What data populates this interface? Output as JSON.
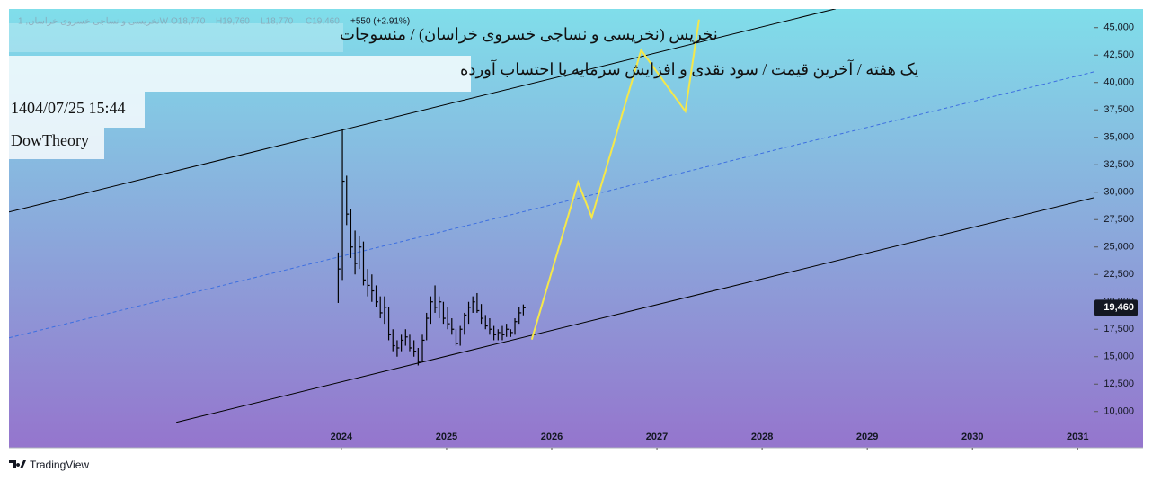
{
  "header": {
    "title": "نخریس (نخریسی و نساجی خسروی خراسان) / منسوجات",
    "subtitle": "یک هفته / آخرین قیمت / سود نقدی و افزایش سرمایه با احتساب آورده",
    "datetime": "1404/07/25 15:44",
    "author": "DowTheory"
  },
  "legend": {
    "symbol": "نخریسی و نساجی خسروی خراسان, 1W",
    "open": {
      "value": 18770,
      "label": "O18,770"
    },
    "high": {
      "value": 19760,
      "label": "H19,760"
    },
    "low": {
      "value": 18770,
      "label": "L18,770"
    },
    "close": {
      "value": 19460,
      "label": "C19,460"
    },
    "change": {
      "value": 550,
      "label": "+550 (+2.91%)"
    }
  },
  "brand": "TradingView",
  "chart_data": {
    "type": "ohlc",
    "color": "#000000",
    "x": [
      2023.97,
      2024.01,
      2024.05,
      2024.09,
      2024.13,
      2024.17,
      2024.21,
      2024.25,
      2024.29,
      2024.33,
      2024.37,
      2024.41,
      2024.45,
      2024.49,
      2024.53,
      2024.57,
      2024.61,
      2024.65,
      2024.69,
      2024.73,
      2024.77,
      2024.81,
      2024.85,
      2024.89,
      2024.93,
      2024.97,
      2025.01,
      2025.05,
      2025.09,
      2025.13,
      2025.17,
      2025.21,
      2025.25,
      2025.29,
      2025.33,
      2025.37,
      2025.41,
      2025.45,
      2025.49,
      2025.53,
      2025.57,
      2025.61,
      2025.65,
      2025.69,
      2025.73
    ],
    "high": [
      24500,
      35800,
      31500,
      28500,
      26500,
      26000,
      25500,
      23000,
      22500,
      21500,
      20500,
      20500,
      19500,
      17500,
      16500,
      17000,
      17500,
      17000,
      16500,
      15800,
      17000,
      19000,
      20500,
      21500,
      20500,
      20000,
      19500,
      18500,
      17500,
      17800,
      19000,
      20000,
      20500,
      20800,
      19800,
      18800,
      18500,
      17800,
      17500,
      17800,
      18000,
      17500,
      18500,
      19500,
      19760
    ],
    "low": [
      19900,
      22000,
      27000,
      24000,
      22500,
      23000,
      21500,
      20500,
      20000,
      19500,
      18500,
      18000,
      16500,
      15500,
      15000,
      15500,
      16000,
      15500,
      15000,
      14200,
      14500,
      16500,
      18000,
      19000,
      18500,
      18000,
      17500,
      17000,
      16000,
      16000,
      17000,
      18000,
      19000,
      19000,
      18000,
      17500,
      17000,
      16500,
      16500,
      16500,
      16800,
      16800,
      17000,
      18000,
      18770
    ],
    "close": [
      23000,
      31000,
      28000,
      25000,
      23500,
      25000,
      22000,
      21500,
      21000,
      20000,
      19000,
      19500,
      17000,
      16000,
      15800,
      16500,
      16800,
      15800,
      15500,
      14500,
      16500,
      18500,
      20000,
      19500,
      20000,
      18500,
      18000,
      17500,
      16200,
      17500,
      18800,
      19500,
      20000,
      19200,
      18500,
      17800,
      17500,
      17000,
      17200,
      17000,
      17500,
      17200,
      18200,
      19000,
      19460
    ],
    "xlim": [
      2020.84,
      2031.16
    ],
    "ylim": [
      6700,
      46700
    ],
    "xticks": [
      2024,
      2025,
      2026,
      2027,
      2028,
      2029,
      2030,
      2031
    ],
    "yticks": [
      {
        "value": 10000,
        "label": "10,000"
      },
      {
        "value": 12500,
        "label": "12,500"
      },
      {
        "value": 15000,
        "label": "15,000"
      },
      {
        "value": 17500,
        "label": "17,500"
      },
      {
        "value": 20000,
        "label": "20,000"
      },
      {
        "value": 22500,
        "label": "22,500"
      },
      {
        "value": 25000,
        "label": "25,000"
      },
      {
        "value": 27500,
        "label": "27,500"
      },
      {
        "value": 30000,
        "label": "30,000"
      },
      {
        "value": 32500,
        "label": "32,500"
      },
      {
        "value": 35000,
        "label": "35,000"
      },
      {
        "value": 37500,
        "label": "37,500"
      },
      {
        "value": 40000,
        "label": "40,000"
      },
      {
        "value": 42500,
        "label": "42,500"
      },
      {
        "value": 45000,
        "label": "45,000"
      }
    ],
    "last_price": {
      "value": 19460,
      "label": "19,460"
    },
    "trend_lines": [
      {
        "color": "#000000",
        "style": "solid",
        "x": [
          2020.84,
          2028.7
        ],
        "y": [
          28197,
          46721
        ]
      },
      {
        "color": "#000000",
        "style": "solid",
        "x": [
          2022.43,
          2031.16
        ],
        "y": [
          9016,
          29508
        ]
      },
      {
        "color": "#3d6fe0",
        "style": "dashed",
        "x": [
          2020.84,
          2031.16
        ],
        "y": [
          16721,
          40984
        ]
      },
      {
        "color": "#f5e84a",
        "style": "solid",
        "x": [
          2025.81,
          2026.25,
          2026.38,
          2026.85,
          2027.27,
          2027.4
        ],
        "y": [
          16560,
          30900,
          27700,
          42950,
          37380,
          45740
        ]
      }
    ]
  }
}
